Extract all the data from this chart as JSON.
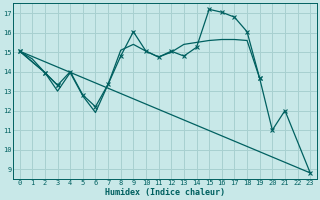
{
  "xlabel": "Humidex (Indice chaleur)",
  "bg_color": "#c8e8e8",
  "grid_color": "#a8d0d0",
  "line_color": "#006060",
  "xlim": [
    -0.5,
    23.5
  ],
  "ylim": [
    8.5,
    17.5
  ],
  "xticks": [
    0,
    1,
    2,
    3,
    4,
    5,
    6,
    7,
    8,
    9,
    10,
    11,
    12,
    13,
    14,
    15,
    16,
    17,
    18,
    19,
    20,
    21,
    22,
    23
  ],
  "yticks": [
    9,
    10,
    11,
    12,
    13,
    14,
    15,
    16,
    17
  ],
  "series": [
    {
      "segments": [
        {
          "x": [
            0,
            1,
            2,
            3,
            4,
            5,
            6,
            7,
            8,
            9,
            10,
            11,
            12,
            13,
            14,
            15,
            16,
            17,
            18,
            19
          ],
          "y": [
            15.05,
            14.65,
            13.95,
            13.0,
            13.95,
            12.75,
            11.9,
            13.35,
            15.1,
            15.4,
            15.05,
            14.75,
            15.0,
            15.4,
            15.5,
            15.6,
            15.65,
            15.65,
            15.6,
            13.65
          ]
        }
      ],
      "has_markers": false,
      "lw": 0.9
    },
    {
      "segments": [
        {
          "x": [
            0,
            2,
            3,
            4,
            5,
            6,
            7,
            8,
            9,
            10,
            11,
            12,
            13,
            14,
            15,
            16,
            17,
            18,
            19
          ],
          "y": [
            15.05,
            13.95,
            13.3,
            14.0,
            12.8,
            12.2,
            13.35,
            14.8,
            16.05,
            15.05,
            14.75,
            15.05,
            14.8,
            15.25,
            17.2,
            17.05,
            16.8,
            16.05,
            13.65
          ]
        }
      ],
      "has_markers": true,
      "lw": 0.9
    },
    {
      "segments": [
        {
          "x": [
            0,
            2,
            3
          ],
          "y": [
            15.05,
            13.95,
            13.3
          ]
        },
        {
          "x": [
            19,
            20,
            21,
            23
          ],
          "y": [
            13.65,
            11.0,
            12.0,
            8.8
          ]
        }
      ],
      "has_markers": true,
      "lw": 0.9
    },
    {
      "segments": [
        {
          "x": [
            0,
            23
          ],
          "y": [
            15.05,
            8.8
          ]
        }
      ],
      "has_markers": false,
      "lw": 0.9
    }
  ]
}
